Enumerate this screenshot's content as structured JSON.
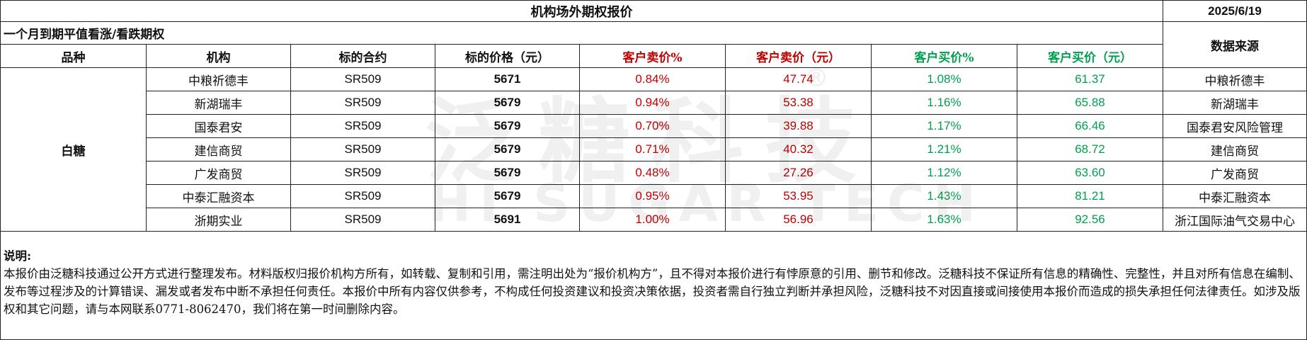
{
  "title": "机构场外期权报价",
  "date": "2025/6/19",
  "subtitle": "一个月到期平值看涨/看跌期权",
  "headers": {
    "variety": "品种",
    "institution": "机构",
    "contract": "标的合约",
    "underlying_price": "标的价格（元）",
    "sell_pct": "客户卖价%",
    "sell_price": "客户卖价（元）",
    "buy_pct": "客户买价%",
    "buy_price": "客户买价（元）",
    "source": "数据来源"
  },
  "colors": {
    "sell": "#c00000",
    "buy": "#00a050"
  },
  "variety": "白糖",
  "rows": [
    {
      "institution": "中粮祈德丰",
      "contract": "SR509",
      "price": "5671",
      "sell_pct": "0.84%",
      "sell_price": "47.74",
      "buy_pct": "1.08%",
      "buy_price": "61.37",
      "source": "中粮祈德丰"
    },
    {
      "institution": "新湖瑞丰",
      "contract": "SR509",
      "price": "5679",
      "sell_pct": "0.94%",
      "sell_price": "53.38",
      "buy_pct": "1.16%",
      "buy_price": "65.88",
      "source": "新湖瑞丰"
    },
    {
      "institution": "国泰君安",
      "contract": "SR509",
      "price": "5679",
      "sell_pct": "0.70%",
      "sell_price": "39.88",
      "buy_pct": "1.17%",
      "buy_price": "66.46",
      "source": "国泰君安风险管理"
    },
    {
      "institution": "建信商贸",
      "contract": "SR509",
      "price": "5679",
      "sell_pct": "0.71%",
      "sell_price": "40.32",
      "buy_pct": "1.21%",
      "buy_price": "68.72",
      "source": "建信商贸"
    },
    {
      "institution": "广发商贸",
      "contract": "SR509",
      "price": "5679",
      "sell_pct": "0.48%",
      "sell_price": "27.26",
      "buy_pct": "1.12%",
      "buy_price": "63.60",
      "source": "广发商贸"
    },
    {
      "institution": "中泰汇融资本",
      "contract": "SR509",
      "price": "5679",
      "sell_pct": "0.95%",
      "sell_price": "53.95",
      "buy_pct": "1.43%",
      "buy_price": "81.21",
      "source": "中泰汇融资本"
    },
    {
      "institution": "浙期实业",
      "contract": "SR509",
      "price": "5691",
      "sell_pct": "1.00%",
      "sell_price": "56.96",
      "buy_pct": "1.63%",
      "buy_price": "92.56",
      "source": "浙江国际油气交易中心"
    }
  ],
  "note": {
    "title": "说明:",
    "body": "本报价由泛糖科技通过公开方式进行整理发布。材料版权归报价机构方所有，如转载、复制和引用，需注明出处为“报价机构方”，且不得对本报价进行有悖原意的引用、删节和修改。泛糖科技不保证所有信息的精确性、完整性，并且对所有信息在编制、发布等过程涉及的计算错误、漏发或者发布中断不承担任何责任。本报价中所有内容仅供参考，不构成任何投资建议和投资决策依据，投资者需自行独立判断并承担风险，泛糖科技不对因直接或间接使用本报价而造成的损失承担任何法律责任。如涉及版权和其它问题，请与本网联系0771-8062470，我们将在第一时间删除内容。"
  },
  "watermark": {
    "cn": "泛糖科技",
    "en": "HI SUGAR TECH",
    "mark": "®"
  }
}
